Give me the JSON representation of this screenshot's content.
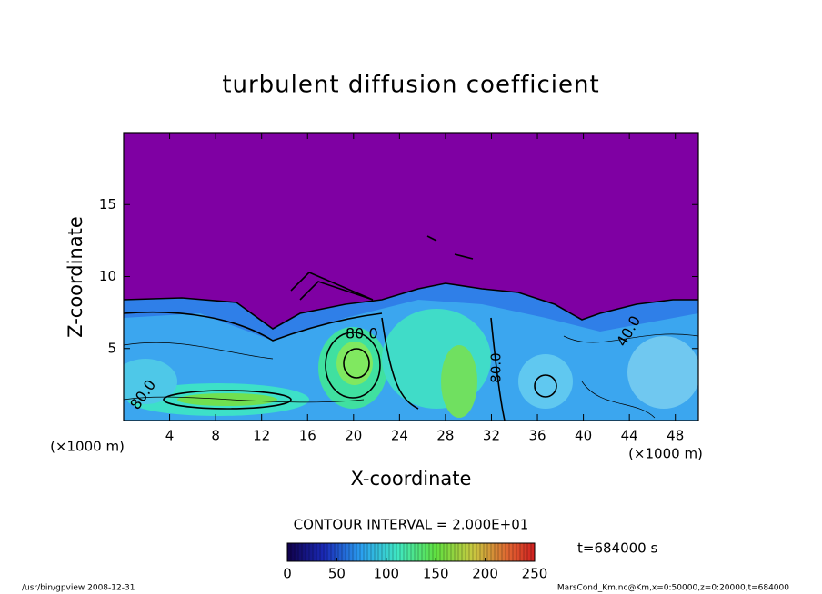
{
  "chart_data": {
    "type": "contour",
    "title": "turbulent diffusion coefficient",
    "xlabel": "X-coordinate",
    "ylabel": "Z-coordinate",
    "xunit": "(×1000 m)",
    "yunit": "(×1000 m)",
    "xlim": [
      0,
      50
    ],
    "xticks": [
      4,
      8,
      12,
      16,
      20,
      24,
      28,
      32,
      36,
      40,
      44,
      48
    ],
    "ylim": [
      0,
      20
    ],
    "yticks": [
      5,
      10,
      15
    ],
    "contour_interval": "CONTOUR INTERVAL = 2.000E+01",
    "time": "t=684000 s",
    "colorbar": {
      "lim": [
        0,
        250
      ],
      "ticks": [
        0,
        50,
        100,
        150,
        200,
        250
      ]
    },
    "annotations": [
      "80.0",
      "80.0",
      "40.0",
      "80.0"
    ],
    "footer_left": "/usr/bin/gpview   2008-12-31",
    "footer_right": "MarsCond_Km.nc@Km,x=0:50000,z=0:20000,t=684000"
  }
}
